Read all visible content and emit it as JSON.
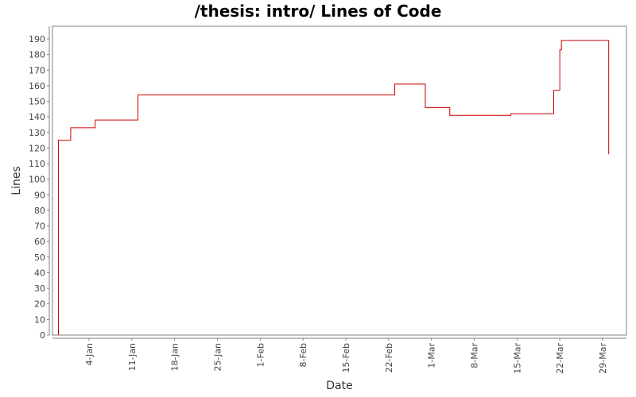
{
  "title": "/thesis: intro/ Lines of Code",
  "chart_data": {
    "type": "line",
    "step": true,
    "title": "/thesis: intro/ Lines of Code",
    "xlabel": "Date",
    "ylabel": "Lines",
    "ylim": [
      0,
      195
    ],
    "yticks": [
      0,
      10,
      20,
      30,
      40,
      50,
      60,
      70,
      80,
      90,
      100,
      110,
      120,
      130,
      140,
      150,
      160,
      170,
      180,
      190
    ],
    "xticks": [
      "4-Jan",
      "11-Jan",
      "18-Jan",
      "25-Jan",
      "1-Feb",
      "8-Feb",
      "15-Feb",
      "22-Feb",
      "1-Mar",
      "8-Mar",
      "15-Mar",
      "22-Mar",
      "29-Mar"
    ],
    "grid": false,
    "legend": null,
    "line_color": "#cc0000",
    "series": [
      {
        "name": "Lines",
        "x": [
          "30-Dec",
          "30-Dec",
          "1-Jan",
          "5-Jan",
          "12-Jan",
          "23-Feb",
          "28-Feb",
          "4-Mar",
          "14-Mar",
          "21-Mar",
          "22-Mar",
          "22-Mar",
          "30-Mar",
          "30-Mar"
        ],
        "values": [
          0,
          125,
          133,
          138,
          154,
          161,
          146,
          141,
          142,
          157,
          183,
          189,
          189,
          116
        ]
      }
    ]
  }
}
